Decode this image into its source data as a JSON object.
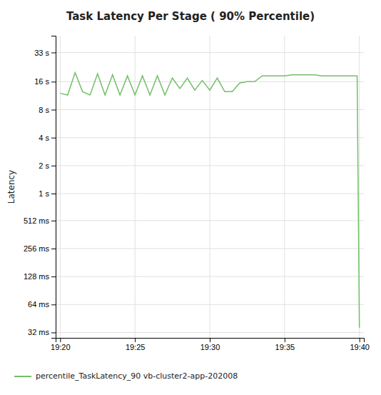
{
  "chart_data": {
    "type": "line",
    "title": "Task Latency Per Stage ( 90% Percentile)",
    "ylabel": "Latency",
    "x": [
      0.0,
      0.5,
      1.0,
      1.5,
      2.0,
      2.5,
      3.0,
      3.5,
      4.0,
      4.5,
      5.0,
      5.5,
      6.0,
      6.5,
      7.0,
      7.5,
      8.0,
      8.5,
      9.0,
      9.5,
      10.0,
      10.5,
      11.0,
      11.5,
      12.0,
      12.5,
      13.0,
      13.5,
      14.0,
      14.5,
      15.0,
      15.5,
      16.0,
      16.5,
      17.0,
      17.5,
      18.0,
      18.5,
      19.0,
      19.5,
      19.85,
      20.0
    ],
    "series": [
      {
        "name": "percentile_TaskLatency_90 vb-cluster2-app-202008",
        "color": "#73bf69",
        "values": [
          12.0,
          11.5,
          20.0,
          12.5,
          11.5,
          19.5,
          11.5,
          19.0,
          11.5,
          18.5,
          11.5,
          18.5,
          11.5,
          18.5,
          11.5,
          17.5,
          13.5,
          17.5,
          13.0,
          16.5,
          13.0,
          17.5,
          12.5,
          12.5,
          15.5,
          16.0,
          16.0,
          18.5,
          18.5,
          18.5,
          18.5,
          19.0,
          19.0,
          19.0,
          19.0,
          18.5,
          18.5,
          18.5,
          18.5,
          18.5,
          18.5,
          0.036
        ]
      }
    ],
    "xlim": [
      -0.3,
      20.3
    ],
    "xticks": [
      {
        "value": 0,
        "label": "19:20"
      },
      {
        "value": 5,
        "label": "19:25"
      },
      {
        "value": 10,
        "label": "19:30"
      },
      {
        "value": 15,
        "label": "19:35"
      },
      {
        "value": 20,
        "label": "19:40"
      }
    ],
    "ylim": [
      0.028,
      50.0
    ],
    "yticks": [
      {
        "value": 33.0,
        "label": "33 s"
      },
      {
        "value": 16.0,
        "label": "16 s"
      },
      {
        "value": 8.0,
        "label": "8 s"
      },
      {
        "value": 4.0,
        "label": "4 s"
      },
      {
        "value": 2.0,
        "label": "2 s"
      },
      {
        "value": 1.0,
        "label": "1 s"
      },
      {
        "value": 0.512,
        "label": "512 ms"
      },
      {
        "value": 0.256,
        "label": "256 ms"
      },
      {
        "value": 0.128,
        "label": "128 ms"
      },
      {
        "value": 0.064,
        "label": "64 ms"
      },
      {
        "value": 0.032,
        "label": "32 ms"
      }
    ],
    "log": "y",
    "grid": true,
    "legend": "bottom"
  }
}
